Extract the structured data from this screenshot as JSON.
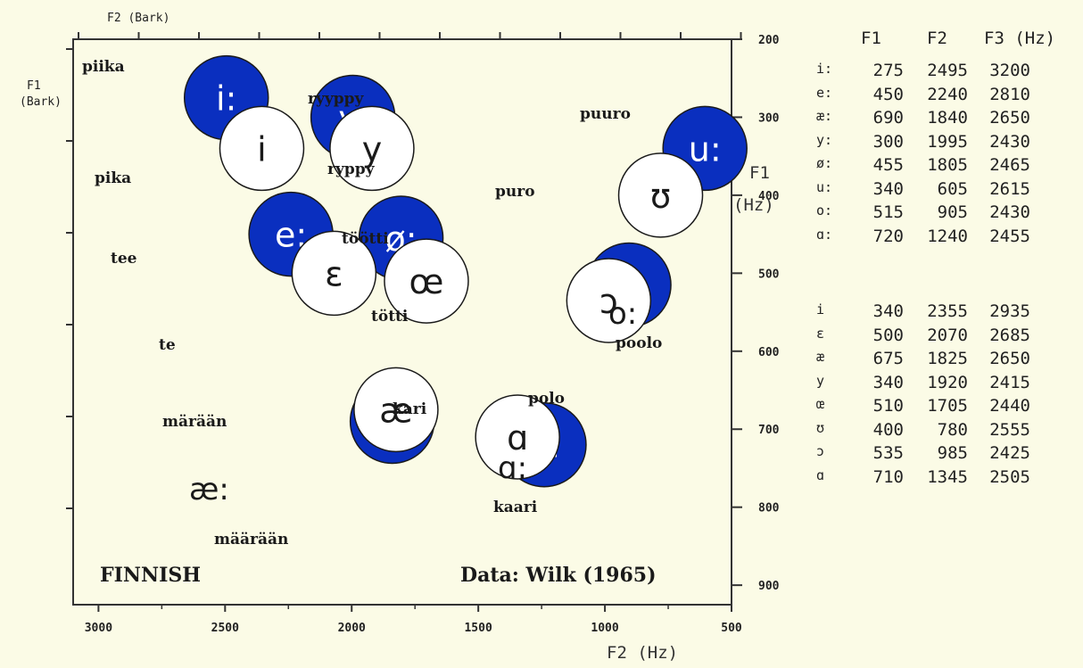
{
  "chart_data": {
    "type": "scatter",
    "x_axis": {
      "label": "F2 (Hz)",
      "reversed": true,
      "ticks": [
        "3000",
        "2500",
        "2000",
        "1500",
        "1000",
        "500"
      ],
      "top_label": "F2 (Bark)"
    },
    "y_axis": {
      "label_lines": [
        "F1",
        "(Hz)"
      ],
      "reversed": true,
      "ticks": [
        "200",
        "300",
        "400",
        "500",
        "600",
        "700",
        "800",
        "900"
      ],
      "left_label_lines": [
        "F1",
        "(Bark)"
      ]
    },
    "annotations": {
      "language": "FINNISH",
      "source": "Data: Wilk (1965)"
    },
    "vowels": [
      {
        "symbol": "i:",
        "style": "filled",
        "cx": 2495,
        "cy": 275,
        "word": "piika"
      },
      {
        "symbol": "i",
        "style": "open",
        "cx": 2355,
        "cy": 340,
        "word": "pika"
      },
      {
        "symbol": "y:",
        "style": "filled",
        "cx": 1995,
        "cy": 300,
        "word": "ryyppy"
      },
      {
        "symbol": "y",
        "style": "open",
        "cx": 1920,
        "cy": 340,
        "word": "ryppy"
      },
      {
        "symbol": "e:",
        "style": "filled",
        "cx": 2240,
        "cy": 450,
        "word": "tee"
      },
      {
        "symbol": "ø:",
        "style": "filled",
        "cx": 1805,
        "cy": 455,
        "word": "töötti"
      },
      {
        "symbol": "ε",
        "style": "open",
        "cx": 2070,
        "cy": 500,
        "word": "te"
      },
      {
        "symbol": "œ",
        "style": "open",
        "cx": 1705,
        "cy": 510,
        "word": "tötti"
      },
      {
        "symbol": "u:",
        "style": "filled",
        "cx": 605,
        "cy": 340,
        "word": "puuro"
      },
      {
        "symbol": "ʊ",
        "style": "open",
        "cx": 780,
        "cy": 400,
        "word": "puro"
      },
      {
        "symbol": "o:",
        "style": "filled",
        "cx": 905,
        "cy": 515,
        "word": "poolo"
      },
      {
        "symbol": "ɔ",
        "style": "open",
        "cx": 985,
        "cy": 535,
        "word": "polo"
      },
      {
        "symbol": "æ:",
        "style": "filled",
        "cx": 1840,
        "cy": 690,
        "word": "määrään"
      },
      {
        "symbol": "æ",
        "style": "open",
        "cx": 1825,
        "cy": 675,
        "word": "märään"
      },
      {
        "symbol": "ɑ:",
        "style": "filled",
        "cx": 1240,
        "cy": 720,
        "word": "kaari"
      },
      {
        "symbol": "ɑ",
        "style": "open",
        "cx": 1345,
        "cy": 710,
        "word": "kari"
      }
    ],
    "table": {
      "headers": [
        "F1",
        "F2",
        "F3 (Hz)"
      ],
      "long_rows": [
        {
          "v": "i:",
          "f1": "275",
          "f2": "2495",
          "f3": "3200"
        },
        {
          "v": "e:",
          "f1": "450",
          "f2": "2240",
          "f3": "2810"
        },
        {
          "v": "æ:",
          "f1": "690",
          "f2": "1840",
          "f3": "2650"
        },
        {
          "v": "y:",
          "f1": "300",
          "f2": "1995",
          "f3": "2430"
        },
        {
          "v": "ø:",
          "f1": "455",
          "f2": "1805",
          "f3": "2465"
        },
        {
          "v": "u:",
          "f1": "340",
          "f2": "605",
          "f3": "2615"
        },
        {
          "v": "o:",
          "f1": "515",
          "f2": "905",
          "f3": "2430"
        },
        {
          "v": "ɑ:",
          "f1": "720",
          "f2": "1240",
          "f3": "2455"
        }
      ],
      "short_rows": [
        {
          "v": "i",
          "f1": "340",
          "f2": "2355",
          "f3": "2935"
        },
        {
          "v": "ε",
          "f1": "500",
          "f2": "2070",
          "f3": "2685"
        },
        {
          "v": "æ",
          "f1": "675",
          "f2": "1825",
          "f3": "2650"
        },
        {
          "v": "y",
          "f1": "340",
          "f2": "1920",
          "f3": "2415"
        },
        {
          "v": "œ",
          "f1": "510",
          "f2": "1705",
          "f3": "2440"
        },
        {
          "v": "ʊ",
          "f1": "400",
          "f2": "780",
          "f3": "2555"
        },
        {
          "v": "ɔ",
          "f1": "535",
          "f2": "985",
          "f3": "2425"
        },
        {
          "v": "ɑ",
          "f1": "710",
          "f2": "1345",
          "f3": "2505"
        }
      ]
    },
    "colors": {
      "filled": "#0a2fbf",
      "open": "#ffffff",
      "text": "#1a1a1a"
    }
  }
}
